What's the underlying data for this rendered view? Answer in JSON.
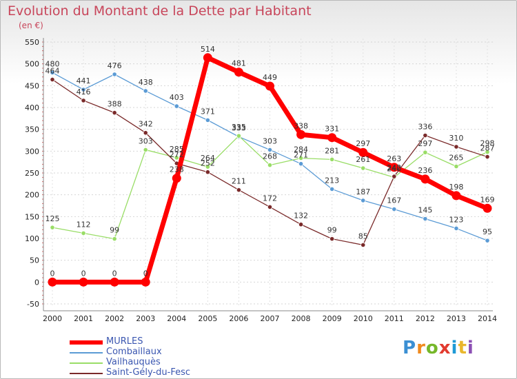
{
  "chart_data": {
    "type": "line",
    "title": "Evolution du Montant de la Dette par Habitant",
    "subtitle": "(en €)",
    "x": [
      "2000",
      "2001",
      "2002",
      "2003",
      "2004",
      "2005",
      "2006",
      "2007",
      "2008",
      "2009",
      "2010",
      "2011",
      "2012",
      "2013",
      "2014"
    ],
    "ylim": [
      -50,
      550
    ],
    "yticks": [
      -50,
      0,
      50,
      100,
      150,
      200,
      250,
      300,
      350,
      400,
      450,
      500,
      550
    ],
    "grid": true,
    "legend_placement": "bottom-left",
    "series": [
      {
        "name": "MURLES",
        "color": "#ff0000",
        "values": [
          0,
          0,
          0,
          0,
          238,
          514,
          481,
          449,
          338,
          331,
          297,
          263,
          236,
          198,
          169
        ],
        "labels": [
          "0",
          "0",
          "0",
          "0",
          "238",
          "514",
          "481",
          "449",
          "338",
          "331",
          "297",
          "263",
          "236",
          "198",
          "169"
        ]
      },
      {
        "name": "Combaillaux",
        "color": "#5b9bd5",
        "values": [
          480,
          441,
          476,
          438,
          403,
          371,
          333,
          303,
          271,
          213,
          187,
          167,
          145,
          123,
          95
        ],
        "labels": [
          "480",
          "441",
          "476",
          "438",
          "403",
          "371",
          "333",
          "303",
          "271",
          "213",
          "187",
          "167",
          "145",
          "123",
          "95"
        ]
      },
      {
        "name": "Vailhauquès",
        "color": "#99dd66",
        "values": [
          125,
          112,
          99,
          303,
          285,
          264,
          335,
          268,
          284,
          281,
          261,
          240,
          297,
          265,
          298
        ],
        "labels": [
          "125",
          "112",
          "99",
          "303",
          "285",
          "264",
          "335",
          "268",
          "284",
          "281",
          "261",
          "240",
          "297",
          "265",
          "298"
        ]
      },
      {
        "name": "Saint-Gély-du-Fesc",
        "color": "#7a2a2a",
        "values": [
          464,
          416,
          388,
          342,
          272,
          252,
          211,
          172,
          132,
          99,
          85,
          242,
          336,
          310,
          287
        ],
        "labels": [
          "464",
          "416",
          "388",
          "342",
          "272",
          "252",
          "211",
          "172",
          "132",
          "99",
          "85",
          "242",
          "336",
          "310",
          "287"
        ]
      }
    ]
  },
  "logo": {
    "letters": [
      "P",
      "r",
      "o",
      "x",
      "i",
      "t",
      "i"
    ]
  }
}
